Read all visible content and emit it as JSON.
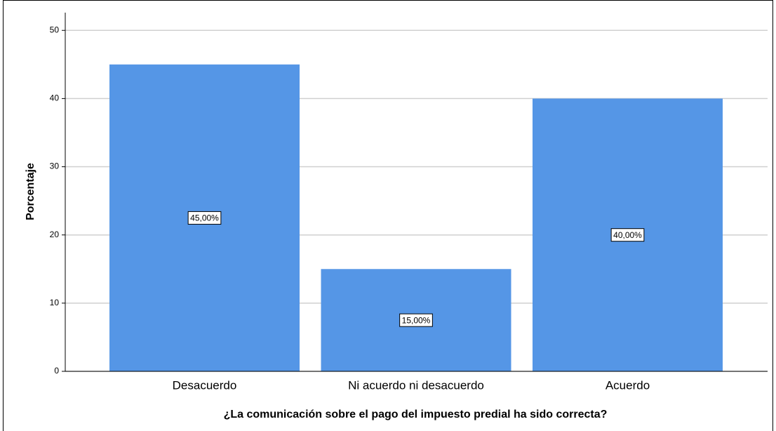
{
  "chart_data": {
    "type": "bar",
    "categories": [
      "Desacuerdo",
      "Ni acuerdo ni desacuerdo",
      "Acuerdo"
    ],
    "values": [
      45,
      15,
      40
    ],
    "value_labels": [
      "45,00%",
      "15,00%",
      "40,00%"
    ],
    "color": "#5596e6",
    "xlabel": "¿La comunicación sobre el pago del impuesto predial ha sido correcta?",
    "ylabel": "Porcentaje",
    "ylim": [
      0,
      52.6
    ],
    "yticks": [
      0,
      10,
      20,
      30,
      40,
      50
    ],
    "grid": true
  }
}
